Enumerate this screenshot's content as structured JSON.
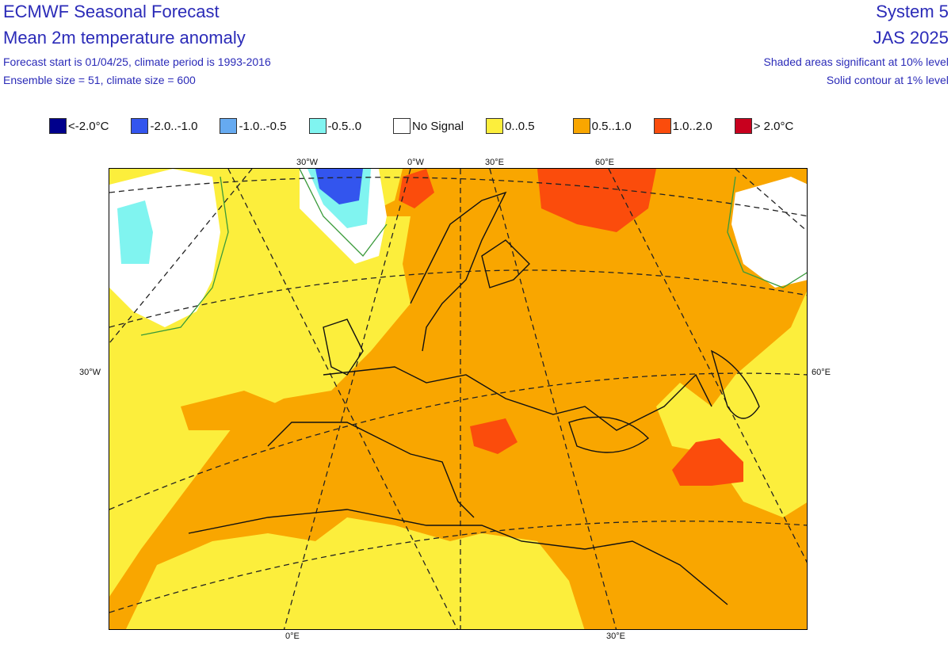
{
  "header": {
    "title": "ECMWF Seasonal Forecast",
    "subtitle": "Mean 2m temperature anomaly",
    "line1": "Forecast start is 01/04/25, climate period is 1993-2016",
    "line2": "Ensemble size = 51, climate size = 600",
    "system": "System 5",
    "period": "JAS 2025",
    "sig1": "Shaded areas significant at 10% level",
    "sig2": "Solid contour at 1% level"
  },
  "legend": [
    {
      "label": "<-2.0°C",
      "color": "#00008c"
    },
    {
      "label": "-2.0..-1.0",
      "color": "#3355ee"
    },
    {
      "label": "-1.0..-0.5",
      "color": "#66aaf0"
    },
    {
      "label": "-0.5..0",
      "color": "#80f4f0"
    },
    {
      "label": "No Signal",
      "color": "#ffffff"
    },
    {
      "label": "0..0.5",
      "color": "#fcee3c"
    },
    {
      "label": "0.5..1.0",
      "color": "#f9a600"
    },
    {
      "label": "1.0..2.0",
      "color": "#fb4c0c"
    },
    {
      "label": "> 2.0°C",
      "color": "#c8001e"
    }
  ],
  "map": {
    "top_labels": [
      "30°W",
      "0°W",
      "30°E",
      "60°E"
    ],
    "left_label": "30°W",
    "right_label": "60°E",
    "bottom_labels": [
      "0°E",
      "30°E"
    ]
  }
}
